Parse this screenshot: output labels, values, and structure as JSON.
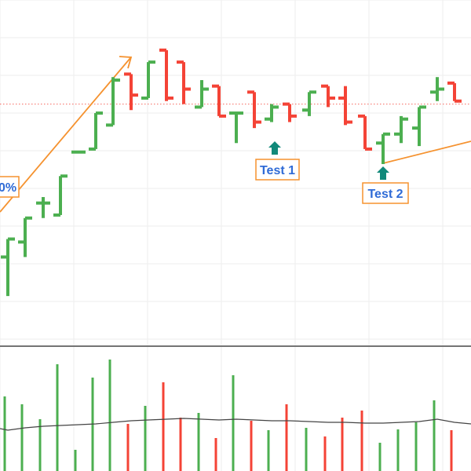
{
  "chart_data": {
    "type": "bar",
    "title": "",
    "xlabel": "",
    "ylabel": "",
    "colors": {
      "up": "#4caf50",
      "down": "#f44336",
      "annotation": "#f5922f",
      "marker": "#11897a",
      "label_text": "#2f6bd6",
      "grid": "#eeeeee",
      "ref_line": "#f44336",
      "vol_avg": "#444444"
    },
    "grid": true,
    "price_range": [
      0,
      100
    ],
    "reference_level": 70,
    "bars": [
      {
        "x": 10,
        "o": 19,
        "h": 25,
        "l": 6,
        "c": 25,
        "vol": 95,
        "d": "up"
      },
      {
        "x": 32,
        "o": 24,
        "h": 32,
        "l": 19,
        "c": 32,
        "vol": 85,
        "d": "up"
      },
      {
        "x": 55,
        "o": 37,
        "h": 39,
        "l": 32,
        "c": 37,
        "vol": 66,
        "d": "up"
      },
      {
        "x": 77,
        "o": 33,
        "h": 46,
        "l": 33,
        "c": 46,
        "vol": 136,
        "d": "up"
      },
      {
        "x": 100,
        "o": 54,
        "h": 54,
        "l": 54,
        "c": 54,
        "vol": 27,
        "d": "up"
      },
      {
        "x": 122,
        "o": 55,
        "h": 67,
        "l": 55,
        "c": 67,
        "vol": 119,
        "d": "up"
      },
      {
        "x": 144,
        "o": 63,
        "h": 79,
        "l": 63,
        "c": 78,
        "vol": 142,
        "d": "up"
      },
      {
        "x": 167,
        "o": 80,
        "h": 80,
        "l": 68,
        "c": 73,
        "vol": 60,
        "d": "down"
      },
      {
        "x": 189,
        "o": 72,
        "h": 84,
        "l": 72,
        "c": 84,
        "vol": 83,
        "d": "up"
      },
      {
        "x": 212,
        "o": 88,
        "h": 88,
        "l": 71,
        "c": 72,
        "vol": 113,
        "d": "down"
      },
      {
        "x": 234,
        "o": 84,
        "h": 84,
        "l": 70,
        "c": 75,
        "vol": 68,
        "d": "down"
      },
      {
        "x": 257,
        "o": 69,
        "h": 78,
        "l": 69,
        "c": 75,
        "vol": 74,
        "d": "up"
      },
      {
        "x": 279,
        "o": 76,
        "h": 76,
        "l": 66,
        "c": 66,
        "vol": 42,
        "d": "down"
      },
      {
        "x": 301,
        "o": 67,
        "h": 67,
        "l": 57,
        "c": 67,
        "vol": 122,
        "d": "up"
      },
      {
        "x": 324,
        "o": 74,
        "h": 74,
        "l": 62,
        "c": 64,
        "vol": 64,
        "d": "down"
      },
      {
        "x": 346,
        "o": 65,
        "h": 70,
        "l": 64,
        "c": 69,
        "vol": 52,
        "d": "up"
      },
      {
        "x": 369,
        "o": 70,
        "h": 70,
        "l": 64,
        "c": 66,
        "vol": 85,
        "d": "down"
      },
      {
        "x": 394,
        "o": 68,
        "h": 74,
        "l": 66,
        "c": 74,
        "vol": 55,
        "d": "up"
      },
      {
        "x": 418,
        "o": 76,
        "h": 76,
        "l": 69,
        "c": 72,
        "vol": 44,
        "d": "down"
      },
      {
        "x": 440,
        "o": 72,
        "h": 76,
        "l": 63,
        "c": 64,
        "vol": 68,
        "d": "down"
      },
      {
        "x": 465,
        "o": 66,
        "h": 66,
        "l": 55,
        "c": 55,
        "vol": 77,
        "d": "down"
      },
      {
        "x": 488,
        "o": 57,
        "h": 60,
        "l": 50,
        "c": 60,
        "vol": 36,
        "d": "up"
      },
      {
        "x": 511,
        "o": 60,
        "h": 66,
        "l": 57,
        "c": 65,
        "vol": 53,
        "d": "up"
      },
      {
        "x": 534,
        "o": 62,
        "h": 69,
        "l": 56,
        "c": 69,
        "vol": 62,
        "d": "up"
      },
      {
        "x": 557,
        "o": 74,
        "h": 79,
        "l": 71,
        "c": 75,
        "vol": 90,
        "d": "up"
      },
      {
        "x": 579,
        "o": 77,
        "h": 77,
        "l": 71,
        "c": 71,
        "vol": 52,
        "d": "down"
      }
    ],
    "volume_average": [
      52,
      55,
      57,
      58,
      59,
      60,
      62,
      64,
      65,
      66,
      67,
      66,
      65,
      66,
      65,
      64,
      64,
      63,
      62,
      62,
      61,
      61,
      62,
      63,
      66,
      62
    ],
    "annotations": [
      {
        "text": "Test 1",
        "bar_index": 15
      },
      {
        "text": "Test 2",
        "bar_index": 21
      }
    ],
    "percent_label": "0%"
  }
}
